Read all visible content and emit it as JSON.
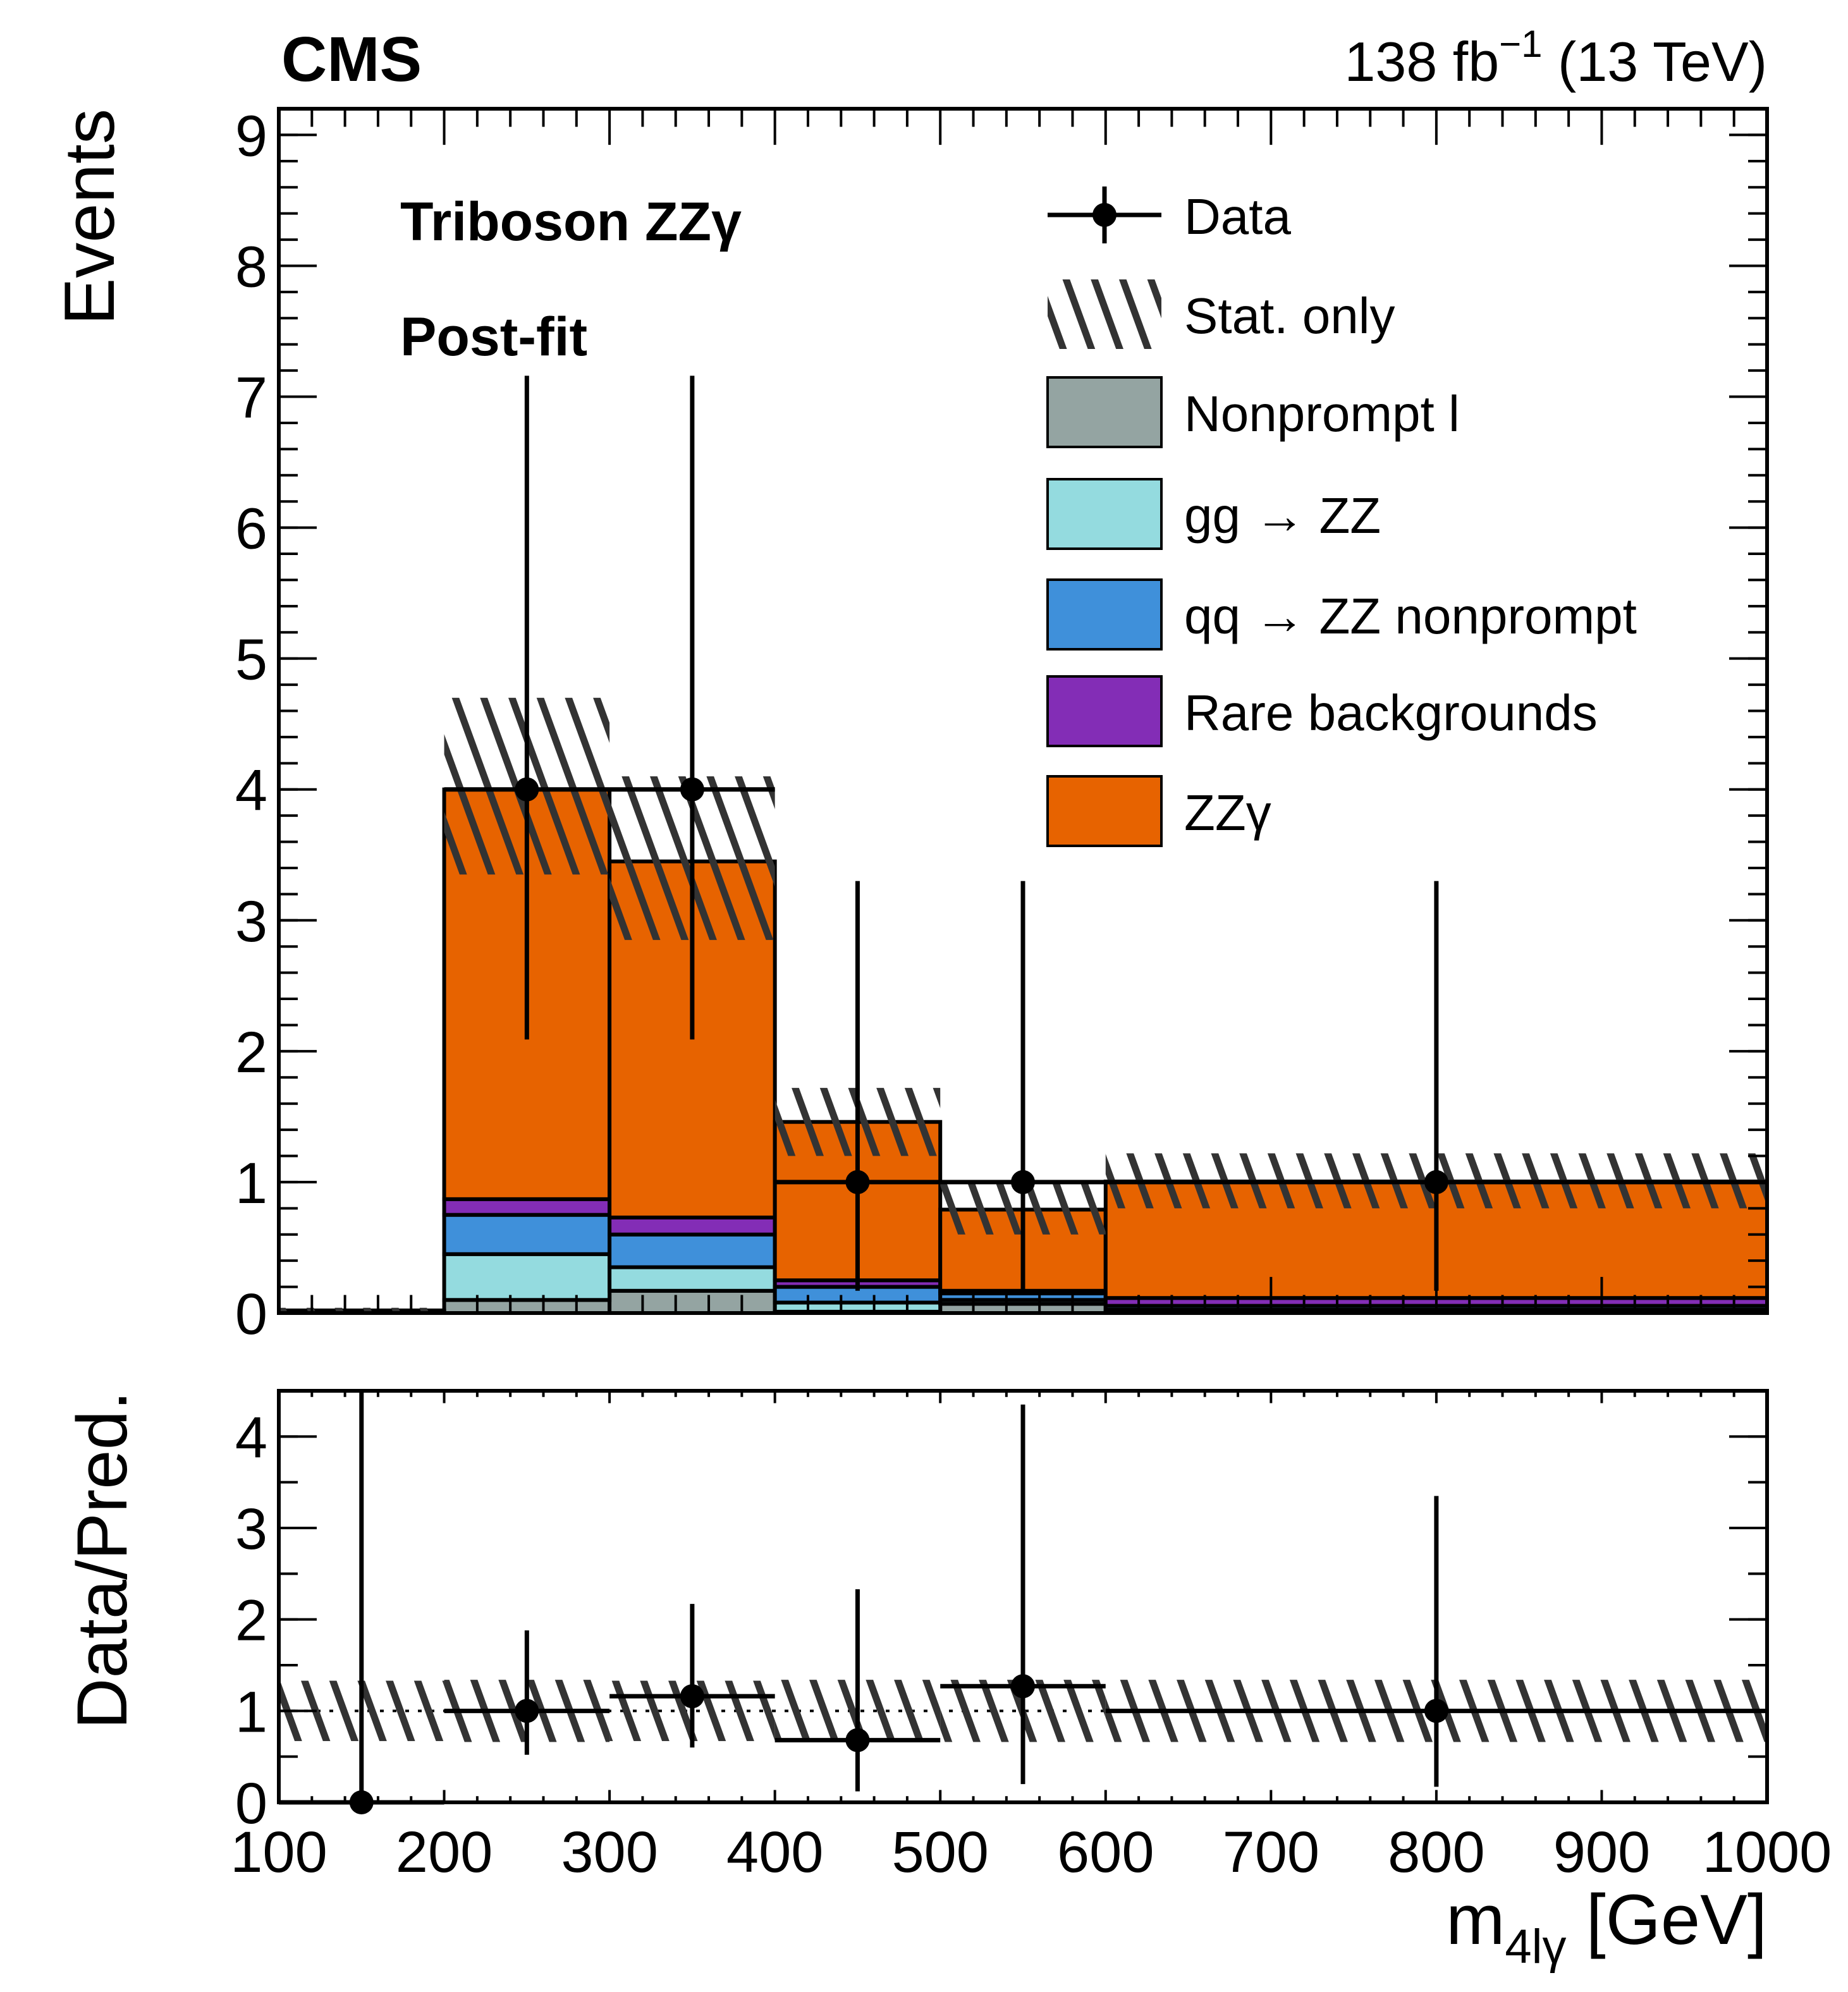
{
  "header": {
    "experiment": "CMS",
    "lumi": "138 fb",
    "lumi_exp": "−1",
    "energy": " (13 TeV)",
    "label1": "Triboson ZZγ",
    "label2": "Post-fit"
  },
  "chart_data": [
    {
      "type": "bar",
      "stacked": true,
      "xlabel_main": "m",
      "xlabel_sub": "4lγ",
      "xlabel_unit": " [GeV]",
      "ylabel": "Events",
      "xlim": [
        100,
        1000
      ],
      "ylim": [
        0,
        9.2
      ],
      "bin_edges": [
        100,
        200,
        300,
        400,
        500,
        600,
        1000
      ],
      "yticks": [
        "0",
        "1",
        "2",
        "3",
        "4",
        "5",
        "6",
        "7",
        "8",
        "9"
      ],
      "legend_position": "top-right",
      "legend": [
        "Data",
        "Stat. only",
        "Nonprompt l",
        "gg → ZZ",
        "qq → ZZ nonprompt",
        "Rare backgrounds",
        "ZZγ"
      ],
      "series": [
        {
          "name": "Nonprompt l",
          "color": "#94a4a2",
          "values": [
            0.005,
            0.1,
            0.17,
            0.01,
            0.07,
            0.005
          ]
        },
        {
          "name": "gg → ZZ",
          "color": "#94dbdf",
          "values": [
            0.005,
            0.35,
            0.18,
            0.07,
            0.03,
            0.02
          ]
        },
        {
          "name": "qq → ZZ nonprompt",
          "color": "#3f90da",
          "values": [
            0.005,
            0.3,
            0.25,
            0.12,
            0.05,
            0.03
          ]
        },
        {
          "name": "Rare backgrounds",
          "color": "#832db6",
          "values": [
            0.002,
            0.12,
            0.13,
            0.05,
            0.02,
            0.06
          ]
        },
        {
          "name": "ZZγ",
          "color": "#e76300",
          "values": [
            0.003,
            3.13,
            2.72,
            1.21,
            0.62,
            0.89
          ]
        }
      ],
      "stat_band": {
        "name": "Stat. only",
        "low": [
          0.0,
          3.35,
          2.85,
          1.2,
          0.6,
          0.8
        ],
        "high": [
          0.04,
          4.7,
          4.1,
          1.72,
          1.0,
          1.22
        ]
      },
      "data": {
        "name": "Data",
        "x": [
          250,
          350,
          450,
          550,
          800
        ],
        "xerr_low": [
          50,
          50,
          50,
          50,
          200
        ],
        "xerr_high": [
          50,
          50,
          50,
          50,
          200
        ],
        "y": [
          4,
          4,
          1,
          1,
          1
        ],
        "yerr_low": [
          1.91,
          1.91,
          0.83,
          0.83,
          0.83
        ],
        "yerr_high": [
          3.16,
          3.16,
          2.3,
          2.3,
          2.3
        ]
      }
    },
    {
      "type": "scatter",
      "ylabel": "Data/Pred.",
      "xlabel": "m4lγ [GeV]",
      "xlim": [
        100,
        1000
      ],
      "ylim": [
        0,
        4.5
      ],
      "xticks": [
        "100",
        "200",
        "300",
        "400",
        "500",
        "600",
        "700",
        "800",
        "900",
        "1000"
      ],
      "yticks": [
        "0",
        "1",
        "2",
        "3",
        "4"
      ],
      "reference_line": 1,
      "stat_band": {
        "low": [
          0.67,
          0.66,
          0.67,
          0.66,
          0.66,
          0.66
        ],
        "high": [
          1.33,
          1.34,
          1.33,
          1.34,
          1.34,
          1.34
        ]
      },
      "ratio": {
        "x": [
          150,
          250,
          350,
          450,
          550,
          800
        ],
        "xerr": [
          50,
          50,
          50,
          50,
          50,
          200
        ],
        "y": [
          0,
          1.0,
          1.16,
          0.68,
          1.27,
          1.0
        ],
        "yerr_low": [
          0,
          0.48,
          0.56,
          0.56,
          1.07,
          0.83
        ],
        "yerr_high": [
          4.6,
          0.88,
          1.01,
          1.65,
          3.08,
          2.35
        ]
      }
    }
  ]
}
